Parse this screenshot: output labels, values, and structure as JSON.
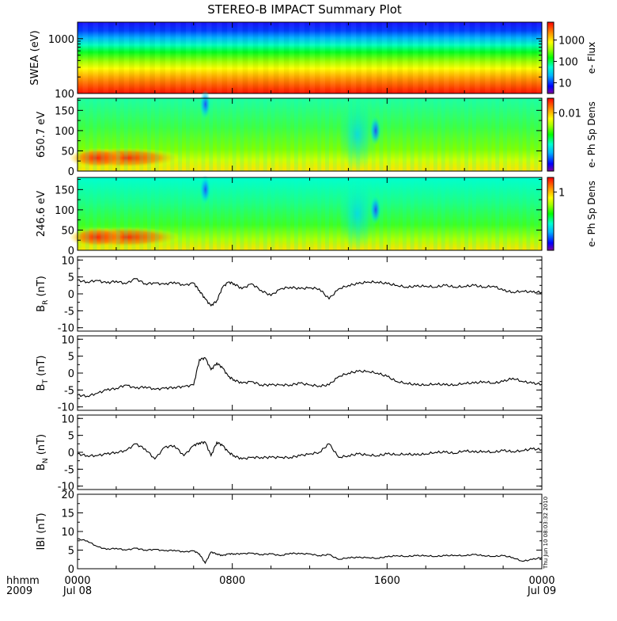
{
  "title": "STEREO-B IMPACT Summary Plot",
  "x_axis": {
    "unit_label": "hhmm",
    "year_label": "2009",
    "ticks": [
      {
        "hhmm": "0000",
        "date": "Jul 08",
        "hour": 0
      },
      {
        "hhmm": "0800",
        "date": "",
        "hour": 8
      },
      {
        "hhmm": "1600",
        "date": "",
        "hour": 16
      },
      {
        "hhmm": "0000",
        "date": "Jul 09",
        "hour": 24
      }
    ]
  },
  "timestamp": "Thu Jun 10 08:03:32 2010",
  "colors": {
    "line": "#000000",
    "spectrum": [
      "#800080",
      "#0000ff",
      "#00c8ff",
      "#00ffc8",
      "#00ff00",
      "#a0ff00",
      "#ffff00",
      "#ffa000",
      "#ff5000",
      "#ff0000"
    ]
  },
  "chart_data": [
    {
      "type": "heatmap",
      "ylabel": "SWEA (eV)",
      "yscale": "log",
      "yticks": [
        "1000",
        "100"
      ],
      "ylim": [
        100,
        2000
      ],
      "colorbar": {
        "label": "e- Flux",
        "scale": "log",
        "ticks": [
          "1000",
          "100",
          "10"
        ]
      },
      "description_rows_top_to_bottom": "low flux (blue) at 2000 eV rising to high flux (red) near 100 eV"
    },
    {
      "type": "heatmap",
      "ylabel": "650.7 eV",
      "yticks": [
        "150",
        "100",
        "50",
        "0"
      ],
      "ylim": [
        0,
        180
      ],
      "colorbar": {
        "label": "e- Ph Sp Dens",
        "scale": "log",
        "ticks": [
          "0.01"
        ]
      },
      "features": [
        {
          "x_hour": 6.6,
          "y": 165,
          "level": "low"
        },
        {
          "x_hour": 15.4,
          "y": 100,
          "level": "low"
        }
      ]
    },
    {
      "type": "heatmap",
      "ylabel": "246.6 eV",
      "yticks": [
        "150",
        "100",
        "50",
        "0"
      ],
      "ylim": [
        0,
        180
      ],
      "colorbar": {
        "label": "e- Ph Sp Dens",
        "scale": "log",
        "ticks": [
          "1"
        ]
      },
      "features": [
        {
          "x_hour": 6.6,
          "y": 150,
          "level": "low"
        },
        {
          "x_hour": 15.4,
          "y": 100,
          "level": "low"
        }
      ]
    },
    {
      "type": "line",
      "ylabel": "BR (nT)",
      "ylabel_main": "B",
      "ylabel_sub": "R",
      "ylabel_unit": "(nT)",
      "ylim": [
        -11,
        11
      ],
      "yticks": [
        "10",
        "5",
        "0",
        "-5",
        "-10"
      ],
      "x_hours": [
        0,
        0.5,
        1,
        1.5,
        2,
        2.5,
        3,
        3.5,
        4,
        4.5,
        5,
        5.5,
        6,
        6.3,
        6.6,
        6.9,
        7.2,
        7.5,
        7.8,
        8.1,
        8.5,
        9,
        9.5,
        10,
        10.5,
        11,
        11.5,
        12,
        12.5,
        13,
        13.5,
        14,
        14.5,
        15,
        15.5,
        16,
        16.5,
        17,
        17.5,
        18,
        18.5,
        19,
        19.5,
        20,
        20.5,
        21,
        21.5,
        22,
        22.5,
        23,
        23.5,
        24
      ],
      "values": [
        4,
        3.5,
        4,
        3.2,
        3.8,
        3,
        4.5,
        3,
        3.2,
        2.8,
        3.5,
        2.5,
        3.2,
        1,
        -1.5,
        -3.5,
        -2,
        2,
        3.5,
        3,
        1.5,
        3,
        1,
        -0.5,
        1.5,
        2,
        1.5,
        1.8,
        1.5,
        -1.5,
        1.5,
        2.5,
        3,
        3.5,
        3.5,
        3,
        2.5,
        2,
        2.2,
        2.3,
        2,
        2.5,
        2,
        2.2,
        2.5,
        2,
        2.3,
        1,
        0.5,
        0.8,
        0.5,
        0.5
      ]
    },
    {
      "type": "line",
      "ylabel": "BT (nT)",
      "ylabel_main": "B",
      "ylabel_sub": "T",
      "ylabel_unit": "(nT)",
      "ylim": [
        -11,
        11
      ],
      "yticks": [
        "10",
        "5",
        "0",
        "-5",
        "-10"
      ],
      "x_hours": [
        0,
        0.5,
        1,
        1.5,
        2,
        2.5,
        3,
        3.5,
        4,
        4.5,
        5,
        5.5,
        6,
        6.3,
        6.6,
        6.9,
        7.2,
        7.5,
        7.8,
        8.1,
        8.5,
        9,
        9.5,
        10,
        10.5,
        11,
        11.5,
        12,
        12.5,
        13,
        13.5,
        14,
        14.5,
        15,
        15.5,
        16,
        16.5,
        17,
        17.5,
        18,
        18.5,
        19,
        19.5,
        20,
        20.5,
        21,
        21.5,
        22,
        22.5,
        23,
        23.5,
        24
      ],
      "values": [
        -6.5,
        -6.8,
        -6,
        -5,
        -4.5,
        -3.5,
        -4.5,
        -4,
        -4.8,
        -4.5,
        -4.2,
        -4,
        -3.5,
        4,
        4.5,
        1,
        3,
        1.5,
        -1,
        -2,
        -3,
        -2.5,
        -3.5,
        -3.5,
        -3.5,
        -3.5,
        -3,
        -3.5,
        -3.8,
        -3.5,
        -1,
        0,
        0.5,
        0.5,
        0,
        -1,
        -2.5,
        -3,
        -3.5,
        -3.5,
        -3.2,
        -3.5,
        -3.5,
        -3,
        -3,
        -2.5,
        -3,
        -2.5,
        -1.5,
        -2.5,
        -3,
        -3.3
      ]
    },
    {
      "type": "line",
      "ylabel": "BN (nT)",
      "ylabel_main": "B",
      "ylabel_sub": "N",
      "ylabel_unit": "(nT)",
      "ylim": [
        -11,
        11
      ],
      "yticks": [
        "10",
        "5",
        "0",
        "-5",
        "-10"
      ],
      "x_hours": [
        0,
        0.5,
        1,
        1.5,
        2,
        2.5,
        3,
        3.5,
        4,
        4.5,
        5,
        5.5,
        6,
        6.3,
        6.6,
        6.9,
        7.2,
        7.5,
        7.8,
        8.1,
        8.5,
        9,
        9.5,
        10,
        10.5,
        11,
        11.5,
        12,
        12.5,
        13,
        13.5,
        14,
        14.5,
        15,
        15.5,
        16,
        16.5,
        17,
        17.5,
        18,
        18.5,
        19,
        19.5,
        20,
        20.5,
        21,
        21.5,
        22,
        22.5,
        23,
        23.5,
        24
      ],
      "values": [
        -0.5,
        -1,
        -1,
        -0.5,
        0,
        0.5,
        2.5,
        1,
        -2,
        1.5,
        2,
        -1,
        2,
        2.8,
        3,
        -1,
        3,
        2,
        0,
        -1,
        -2,
        -1.5,
        -1.5,
        -1.5,
        -1.5,
        -1.5,
        -1,
        -0.5,
        0,
        2.5,
        -1.5,
        -1,
        -0.5,
        -0.8,
        -1,
        -0.5,
        -0.7,
        -0.5,
        -0.8,
        -0.5,
        0,
        0,
        -0.3,
        0.5,
        0,
        0.3,
        0,
        0.5,
        0.2,
        0.5,
        1,
        0.8
      ]
    },
    {
      "type": "line",
      "ylabel": "|B| (nT)",
      "ylabel_display": "IBI (nT)",
      "ylim": [
        0,
        20
      ],
      "yticks": [
        "20",
        "15",
        "10",
        "5",
        "0"
      ],
      "x_hours": [
        0,
        0.5,
        1,
        1.5,
        2,
        2.5,
        3,
        3.5,
        4,
        4.5,
        5,
        5.5,
        6,
        6.3,
        6.6,
        6.9,
        7.2,
        7.5,
        7.8,
        8.1,
        8.5,
        9,
        9.5,
        10,
        10.5,
        11,
        11.5,
        12,
        12.5,
        13,
        13.5,
        14,
        14.5,
        15,
        15.5,
        16,
        16.5,
        17,
        17.5,
        18,
        18.5,
        19,
        19.5,
        20,
        20.5,
        21,
        21.5,
        22,
        22.5,
        23,
        23.5,
        24
      ],
      "values": [
        8,
        7.5,
        6,
        5.2,
        5.5,
        5,
        5.5,
        5,
        5.2,
        4.8,
        5,
        4.5,
        4.8,
        4,
        1.5,
        4.5,
        4,
        3.5,
        4,
        4,
        4,
        4.2,
        3.8,
        4,
        3.5,
        4.2,
        4,
        4,
        3.5,
        3.8,
        2.5,
        3,
        3,
        3,
        2.8,
        3.2,
        3.5,
        3.3,
        3.5,
        3.5,
        3.3,
        3.5,
        3.6,
        3.5,
        3.8,
        3.5,
        3.3,
        3.5,
        3,
        2,
        2.5,
        3
      ]
    }
  ]
}
